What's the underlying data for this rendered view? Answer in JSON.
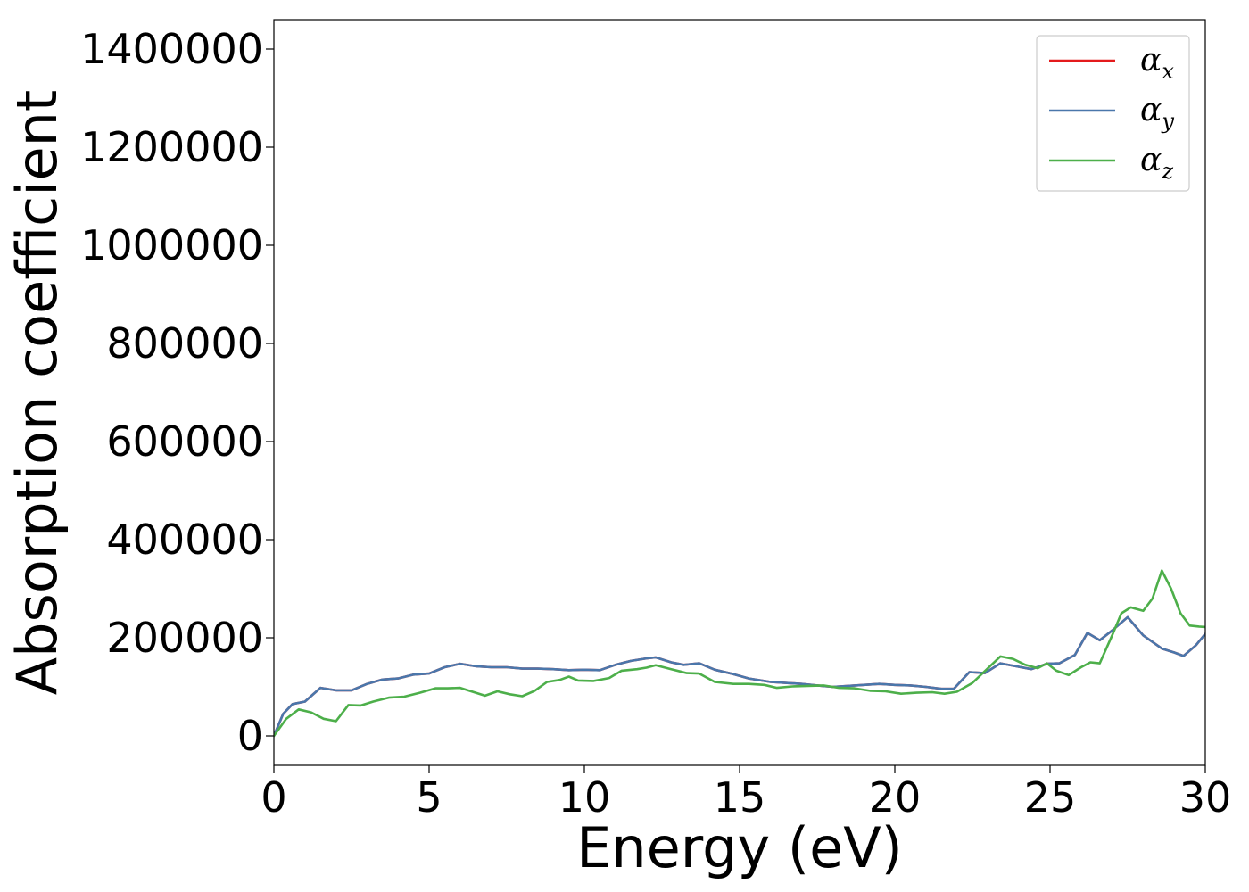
{
  "chart_data": {
    "type": "line",
    "title": "",
    "xlabel": "Energy (eV)",
    "ylabel": "Absorption coefficient",
    "xlim": [
      0,
      30
    ],
    "ylim": [
      -60000,
      1460000
    ],
    "x_ticks": [
      0,
      5,
      10,
      15,
      20,
      25,
      30
    ],
    "y_ticks": [
      0,
      200000,
      400000,
      600000,
      800000,
      1000000,
      1200000,
      1400000
    ],
    "x_tick_labels": [
      "0",
      "5",
      "10",
      "15",
      "20",
      "25",
      "30"
    ],
    "y_tick_labels": [
      "0",
      "200000",
      "400000",
      "600000",
      "800000",
      "1000000",
      "1200000",
      "1400000"
    ],
    "grid": false,
    "legend_position": "top-right",
    "series": [
      {
        "name": "α_x",
        "symbol": "α",
        "subscript": "x",
        "color": "#e41a1c",
        "points": [
          [
            0,
            0
          ],
          [
            0.3,
            45000
          ],
          [
            0.6,
            65000
          ],
          [
            1.0,
            70000
          ],
          [
            1.5,
            98000
          ],
          [
            2.0,
            93000
          ],
          [
            2.5,
            93000
          ],
          [
            3.0,
            106000
          ],
          [
            3.5,
            115000
          ],
          [
            4.0,
            117000
          ],
          [
            4.5,
            125000
          ],
          [
            5.0,
            127000
          ],
          [
            5.5,
            140000
          ],
          [
            6.0,
            147000
          ],
          [
            6.5,
            142000
          ],
          [
            7.0,
            140000
          ],
          [
            7.5,
            140000
          ],
          [
            8.0,
            137000
          ],
          [
            8.5,
            137000
          ],
          [
            9.0,
            136000
          ],
          [
            9.5,
            134000
          ],
          [
            10.0,
            135000
          ],
          [
            10.5,
            134000
          ],
          [
            11.0,
            145000
          ],
          [
            11.5,
            153000
          ],
          [
            12.0,
            158000
          ],
          [
            12.3,
            160000
          ],
          [
            12.8,
            150000
          ],
          [
            13.2,
            145000
          ],
          [
            13.7,
            148000
          ],
          [
            14.2,
            135000
          ],
          [
            14.8,
            126000
          ],
          [
            15.3,
            117000
          ],
          [
            16.0,
            110000
          ],
          [
            17.0,
            106000
          ],
          [
            17.5,
            103000
          ],
          [
            18.0,
            100000
          ],
          [
            18.5,
            102000
          ],
          [
            19.0,
            104000
          ],
          [
            19.5,
            106000
          ],
          [
            20.0,
            104000
          ],
          [
            20.5,
            103000
          ],
          [
            21.0,
            100000
          ],
          [
            21.5,
            96000
          ],
          [
            21.9,
            96000
          ],
          [
            22.4,
            130000
          ],
          [
            22.9,
            128000
          ],
          [
            23.4,
            148000
          ],
          [
            23.9,
            142000
          ],
          [
            24.4,
            136000
          ],
          [
            24.9,
            147000
          ],
          [
            25.3,
            148000
          ],
          [
            25.8,
            165000
          ],
          [
            26.2,
            210000
          ],
          [
            26.6,
            195000
          ],
          [
            27.0,
            215000
          ],
          [
            27.5,
            242000
          ],
          [
            28.0,
            205000
          ],
          [
            28.6,
            178000
          ],
          [
            29.0,
            170000
          ],
          [
            29.3,
            163000
          ],
          [
            29.7,
            185000
          ],
          [
            30.0,
            208000
          ]
        ]
      },
      {
        "name": "α_y",
        "symbol": "α",
        "subscript": "y",
        "color": "#4a77ab",
        "points": [
          [
            0,
            0
          ],
          [
            0.3,
            45000
          ],
          [
            0.6,
            65000
          ],
          [
            1.0,
            70000
          ],
          [
            1.5,
            98000
          ],
          [
            2.0,
            93000
          ],
          [
            2.5,
            93000
          ],
          [
            3.0,
            106000
          ],
          [
            3.5,
            115000
          ],
          [
            4.0,
            117000
          ],
          [
            4.5,
            125000
          ],
          [
            5.0,
            127000
          ],
          [
            5.5,
            140000
          ],
          [
            6.0,
            147000
          ],
          [
            6.5,
            142000
          ],
          [
            7.0,
            140000
          ],
          [
            7.5,
            140000
          ],
          [
            8.0,
            137000
          ],
          [
            8.5,
            137000
          ],
          [
            9.0,
            136000
          ],
          [
            9.5,
            134000
          ],
          [
            10.0,
            135000
          ],
          [
            10.5,
            134000
          ],
          [
            11.0,
            145000
          ],
          [
            11.5,
            153000
          ],
          [
            12.0,
            158000
          ],
          [
            12.3,
            160000
          ],
          [
            12.8,
            150000
          ],
          [
            13.2,
            145000
          ],
          [
            13.7,
            148000
          ],
          [
            14.2,
            135000
          ],
          [
            14.8,
            126000
          ],
          [
            15.3,
            117000
          ],
          [
            16.0,
            110000
          ],
          [
            17.0,
            106000
          ],
          [
            17.5,
            103000
          ],
          [
            18.0,
            100000
          ],
          [
            18.5,
            102000
          ],
          [
            19.0,
            104000
          ],
          [
            19.5,
            106000
          ],
          [
            20.0,
            104000
          ],
          [
            20.5,
            103000
          ],
          [
            21.0,
            100000
          ],
          [
            21.5,
            96000
          ],
          [
            21.9,
            96000
          ],
          [
            22.4,
            130000
          ],
          [
            22.9,
            128000
          ],
          [
            23.4,
            148000
          ],
          [
            23.9,
            142000
          ],
          [
            24.4,
            136000
          ],
          [
            24.9,
            147000
          ],
          [
            25.3,
            148000
          ],
          [
            25.8,
            165000
          ],
          [
            26.2,
            210000
          ],
          [
            26.6,
            195000
          ],
          [
            27.0,
            215000
          ],
          [
            27.5,
            242000
          ],
          [
            28.0,
            205000
          ],
          [
            28.6,
            178000
          ],
          [
            29.0,
            170000
          ],
          [
            29.3,
            163000
          ],
          [
            29.7,
            185000
          ],
          [
            30.0,
            208000
          ]
        ]
      },
      {
        "name": "α_z",
        "symbol": "α",
        "subscript": "z",
        "color": "#4daf4a",
        "points": [
          [
            0,
            0
          ],
          [
            0.4,
            35000
          ],
          [
            0.8,
            54000
          ],
          [
            1.2,
            48000
          ],
          [
            1.6,
            35000
          ],
          [
            2.0,
            30000
          ],
          [
            2.4,
            63000
          ],
          [
            2.8,
            62000
          ],
          [
            3.2,
            70000
          ],
          [
            3.7,
            78000
          ],
          [
            4.2,
            80000
          ],
          [
            4.7,
            88000
          ],
          [
            5.2,
            97000
          ],
          [
            5.6,
            97000
          ],
          [
            6.0,
            98000
          ],
          [
            6.4,
            90000
          ],
          [
            6.8,
            82000
          ],
          [
            7.2,
            91000
          ],
          [
            7.6,
            85000
          ],
          [
            8.0,
            81000
          ],
          [
            8.4,
            92000
          ],
          [
            8.8,
            110000
          ],
          [
            9.2,
            114000
          ],
          [
            9.5,
            121000
          ],
          [
            9.8,
            113000
          ],
          [
            10.3,
            112000
          ],
          [
            10.8,
            118000
          ],
          [
            11.2,
            133000
          ],
          [
            11.7,
            136000
          ],
          [
            12.0,
            139000
          ],
          [
            12.3,
            144000
          ],
          [
            12.8,
            136000
          ],
          [
            13.3,
            128000
          ],
          [
            13.7,
            127000
          ],
          [
            14.2,
            110000
          ],
          [
            14.8,
            106000
          ],
          [
            15.3,
            106000
          ],
          [
            15.8,
            104000
          ],
          [
            16.2,
            98000
          ],
          [
            16.7,
            101000
          ],
          [
            17.2,
            102000
          ],
          [
            17.7,
            103000
          ],
          [
            18.2,
            98000
          ],
          [
            18.7,
            97000
          ],
          [
            19.2,
            92000
          ],
          [
            19.7,
            91000
          ],
          [
            20.2,
            86000
          ],
          [
            20.7,
            88000
          ],
          [
            21.2,
            89000
          ],
          [
            21.6,
            86000
          ],
          [
            22.0,
            90000
          ],
          [
            22.5,
            108000
          ],
          [
            23.0,
            138000
          ],
          [
            23.4,
            162000
          ],
          [
            23.8,
            157000
          ],
          [
            24.2,
            145000
          ],
          [
            24.6,
            138000
          ],
          [
            24.9,
            148000
          ],
          [
            25.2,
            133000
          ],
          [
            25.6,
            124000
          ],
          [
            26.0,
            140000
          ],
          [
            26.3,
            150000
          ],
          [
            26.6,
            148000
          ],
          [
            27.0,
            205000
          ],
          [
            27.3,
            250000
          ],
          [
            27.6,
            262000
          ],
          [
            28.0,
            255000
          ],
          [
            28.3,
            280000
          ],
          [
            28.6,
            337000
          ],
          [
            28.9,
            300000
          ],
          [
            29.2,
            250000
          ],
          [
            29.5,
            225000
          ],
          [
            29.8,
            223000
          ],
          [
            30.0,
            222000
          ]
        ]
      }
    ]
  }
}
